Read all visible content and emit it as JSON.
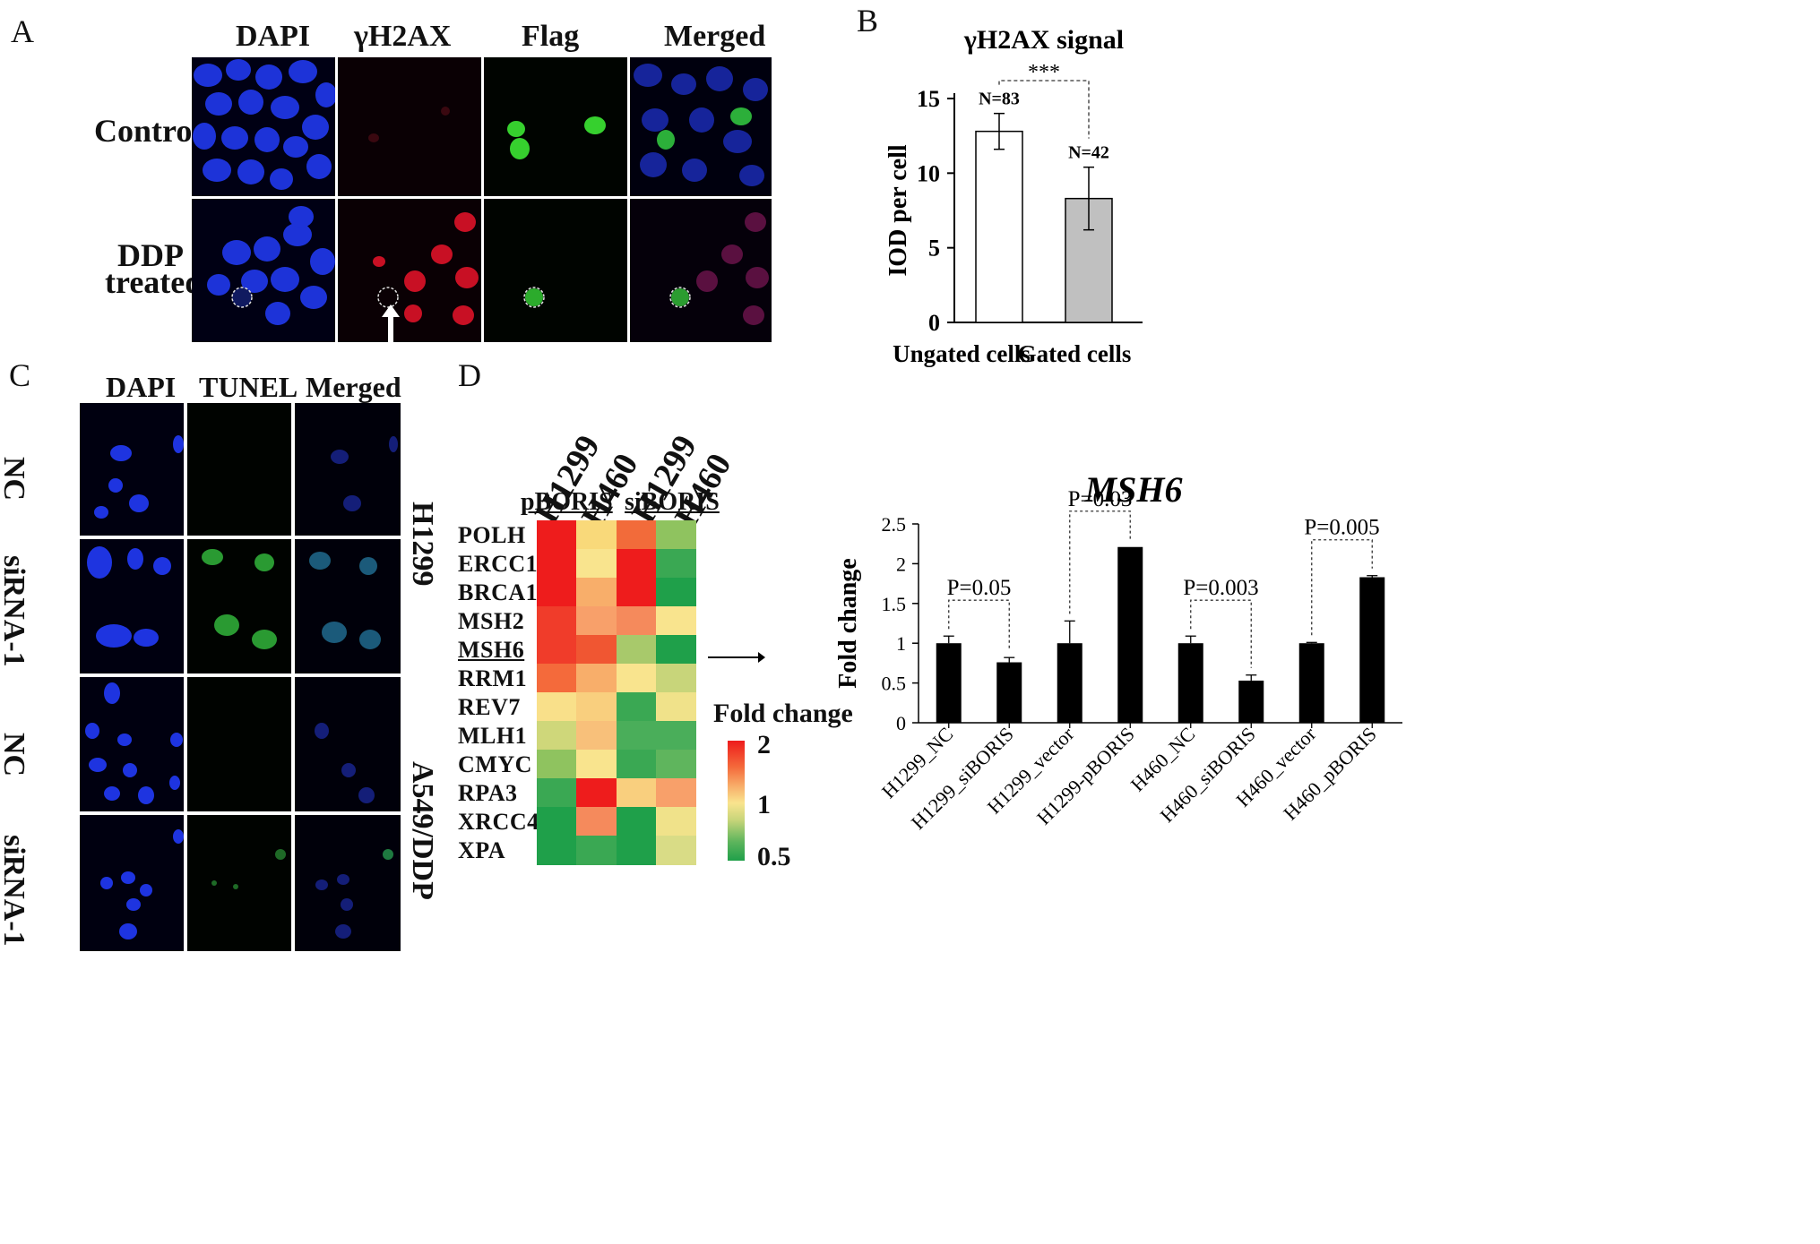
{
  "panels": {
    "A": {
      "letter": "A",
      "columns": [
        "DAPI",
        "γH2AX",
        "Flag",
        "Merged"
      ],
      "rows": [
        "Control",
        "DDP",
        "treated"
      ]
    },
    "B": {
      "letter": "B",
      "title": "γH2AX signal",
      "sig": "***",
      "n_labels": [
        "N=83",
        "N=42"
      ]
    },
    "C": {
      "letter": "C",
      "columns": [
        "DAPI",
        "TUNEL",
        "Merged"
      ],
      "rows": [
        "NC",
        "siRNA-1",
        "NC",
        "siRNA-1"
      ],
      "side_labels": [
        "H1299",
        "A549/DDP"
      ]
    },
    "D": {
      "letter": "D",
      "col_labels": [
        "H1299",
        "H460",
        "H1299",
        "H460"
      ],
      "group_labels": [
        "pBORIS",
        "siBORIS"
      ],
      "genes": [
        "POLH",
        "ERCC1",
        "BRCA1",
        "MSH2",
        "MSH6",
        "RRM1",
        "REV7",
        "MLH1",
        "CMYC",
        "RPA3",
        "XRCC4",
        "XPA"
      ],
      "heat_colors": [
        [
          "#ee1c1c",
          "#f9d97a",
          "#f26b3a",
          "#8fc35f"
        ],
        [
          "#ee1c1c",
          "#f9e48e",
          "#ee1c1c",
          "#3aa853"
        ],
        [
          "#ee1c1c",
          "#f8ae6a",
          "#ee1c1c",
          "#1fa04a"
        ],
        [
          "#f03c2a",
          "#f8a06a",
          "#f58a5c",
          "#f9e48e"
        ],
        [
          "#f03c2a",
          "#f05632",
          "#a8c96b",
          "#1fa04a"
        ],
        [
          "#f46a3b",
          "#f8ae6a",
          "#f9e48e",
          "#c8d57a"
        ],
        [
          "#f9e08a",
          "#f9cf7e",
          "#3aa853",
          "#f0e28a"
        ],
        [
          "#cfd77a",
          "#f8c07a",
          "#4aae5a",
          "#4aae5a"
        ],
        [
          "#8fc35f",
          "#f9e48e",
          "#3aa853",
          "#5fb55d"
        ],
        [
          "#3aa853",
          "#ee1c1c",
          "#f9cf7e",
          "#f8a06a"
        ],
        [
          "#1fa04a",
          "#f58a5c",
          "#1fa04a",
          "#f0e28a"
        ],
        [
          "#1fa04a",
          "#3aa853",
          "#1fa04a",
          "#d9dc86"
        ]
      ],
      "legend_title": "Fold change",
      "legend_ticks": [
        "2",
        "1",
        "0.5"
      ]
    }
  },
  "chart_data": [
    {
      "type": "bar",
      "title": "γH2AX signal",
      "categories": [
        "Ungated cells",
        "Gated cells"
      ],
      "values": [
        12.8,
        8.3
      ],
      "errors": [
        1.2,
        2.1
      ],
      "ylabel": "IOD per cell",
      "ylim": [
        0,
        15
      ],
      "yticks": [
        "0",
        "5",
        "10",
        "15"
      ],
      "bar_colors": [
        "#ffffff",
        "#c0c0c0"
      ]
    },
    {
      "type": "bar",
      "title": "MSH6",
      "categories": [
        "H1299_NC",
        "H1299_siBORIS",
        "H1299_vector",
        "H1299-pBORIS",
        "H460_NC",
        "H460_siBORIS",
        "H460_vector",
        "H460_pBORIS"
      ],
      "values": [
        1.0,
        0.76,
        1.0,
        2.21,
        1.0,
        0.53,
        1.0,
        1.83
      ],
      "errors": [
        0.09,
        0.06,
        0.28,
        0.0,
        0.09,
        0.07,
        0.01,
        0.02
      ],
      "ylabel": "Fold change",
      "ylim": [
        0,
        2.5
      ],
      "yticks": [
        "0",
        "0.5",
        "1",
        "1.5",
        "2",
        "2.5"
      ],
      "comparisons": [
        {
          "label": "P=0.05",
          "pair": [
            0,
            1
          ]
        },
        {
          "label": "P=0.03",
          "pair": [
            2,
            3
          ]
        },
        {
          "label": "P=0.003",
          "pair": [
            4,
            5
          ]
        },
        {
          "label": "P=0.005",
          "pair": [
            6,
            7
          ]
        }
      ]
    }
  ]
}
